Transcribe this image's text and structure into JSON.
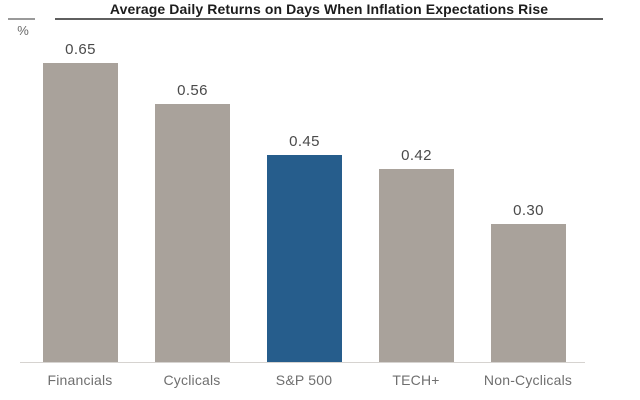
{
  "header": {
    "title": "Average Daily Returns on Days When Inflation Expectations Rise",
    "unit_label": "%"
  },
  "chart_data": {
    "type": "bar",
    "title": "Average Daily Returns on Days When Inflation Expectations Rise",
    "ylabel": "%",
    "categories": [
      "Financials",
      "Cyclicals",
      "S&P 500",
      "TECH+",
      "Non-Cyclicals"
    ],
    "values": [
      0.65,
      0.56,
      0.45,
      0.42,
      0.3
    ],
    "value_labels": [
      "0.65",
      "0.56",
      "0.45",
      "0.42",
      "0.30"
    ],
    "highlight_index": 2,
    "highlight_category": "S&P 500",
    "colors": {
      "bar": "#a9a29b",
      "highlight": "#265d8c"
    },
    "ylim": [
      0,
      0.7
    ],
    "grid": false,
    "legend": "none",
    "data_labels": true
  }
}
